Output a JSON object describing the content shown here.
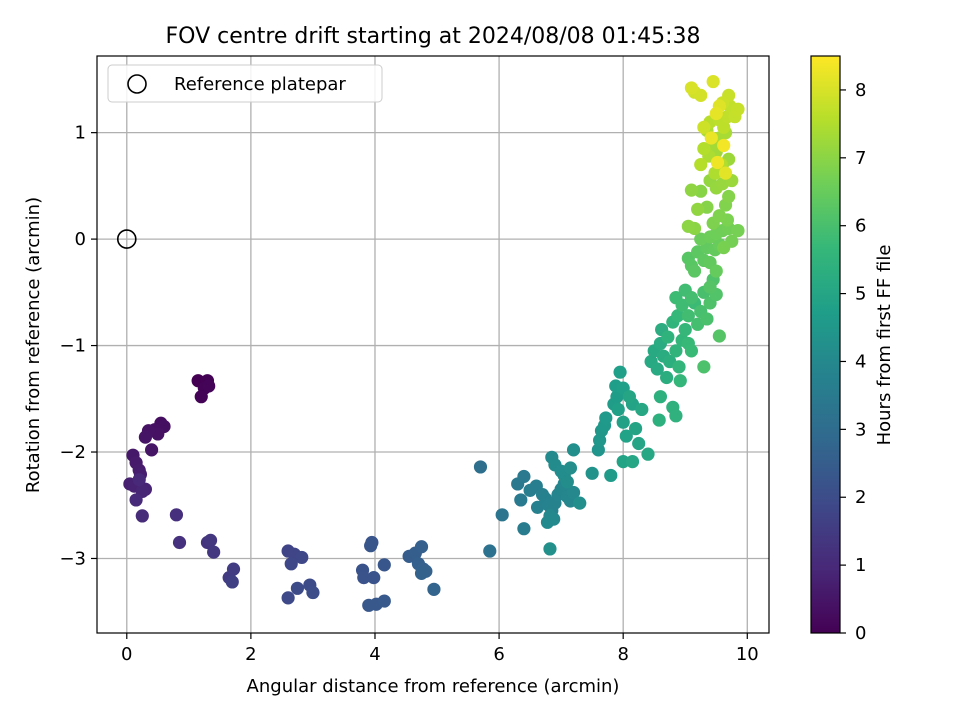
{
  "chart_data": {
    "type": "scatter",
    "title": "FOV centre drift starting at 2024/08/08 01:45:38",
    "xlabel": "Angular distance from reference (arcmin)",
    "ylabel": "Rotation from reference (arcmin)",
    "xlim": [
      -0.48,
      10.35
    ],
    "ylim": [
      -3.7,
      1.72
    ],
    "xticks": [
      0,
      2,
      4,
      6,
      8,
      10
    ],
    "yticks": [
      -3,
      -2,
      -1,
      0,
      1
    ],
    "xtick_labels": [
      "0",
      "2",
      "4",
      "6",
      "8",
      "10"
    ],
    "ytick_labels": [
      "−3",
      "−2",
      "−1",
      "0",
      "1"
    ],
    "grid": true,
    "legend": {
      "placement": "upper-left",
      "entries": [
        "Reference platepar"
      ]
    },
    "reference_point": {
      "label": "Reference platepar",
      "x": 0,
      "y": 0,
      "marker": "open-circle"
    },
    "colorbar": {
      "label": "Hours from first FF file",
      "range": [
        0,
        8.5
      ],
      "ticks": [
        0,
        1,
        2,
        3,
        4,
        5,
        6,
        7,
        8
      ],
      "tick_labels": [
        "0",
        "1",
        "2",
        "3",
        "4",
        "5",
        "6",
        "7",
        "8"
      ],
      "colormap": "viridis",
      "stops": [
        "#440154",
        "#482878",
        "#3e4989",
        "#31688e",
        "#26828e",
        "#1f9e89",
        "#35b779",
        "#6ece58",
        "#b5de2b",
        "#fde725"
      ]
    },
    "series": [
      {
        "points": [
          [
            1.15,
            -1.33,
            0.0
          ],
          [
            1.3,
            -1.33,
            0.02
          ],
          [
            1.25,
            -1.4,
            0.04
          ],
          [
            1.2,
            -1.48,
            0.06
          ],
          [
            1.32,
            -1.38,
            0.08
          ],
          [
            0.55,
            -1.73,
            0.3
          ],
          [
            0.6,
            -1.76,
            0.33
          ],
          [
            0.45,
            -1.79,
            0.36
          ],
          [
            0.5,
            -1.83,
            0.39
          ],
          [
            0.35,
            -1.8,
            0.42
          ],
          [
            0.3,
            -1.86,
            0.45
          ],
          [
            0.4,
            -1.98,
            0.48
          ],
          [
            0.1,
            -2.03,
            0.55
          ],
          [
            0.15,
            -2.1,
            0.6
          ],
          [
            0.2,
            -2.17,
            0.65
          ],
          [
            0.22,
            -2.21,
            0.7
          ],
          [
            0.05,
            -2.3,
            0.75
          ],
          [
            0.12,
            -2.32,
            0.8
          ],
          [
            0.3,
            -2.35,
            0.85
          ],
          [
            0.25,
            -2.37,
            0.9
          ],
          [
            0.2,
            -2.26,
            0.95
          ],
          [
            0.15,
            -2.45,
            1.0
          ],
          [
            0.25,
            -2.6,
            1.05
          ],
          [
            0.8,
            -2.59,
            1.15
          ],
          [
            0.85,
            -2.85,
            1.2
          ],
          [
            1.3,
            -2.85,
            1.3
          ],
          [
            1.35,
            -2.83,
            1.35
          ],
          [
            1.4,
            -2.94,
            1.4
          ],
          [
            1.65,
            -3.18,
            1.5
          ],
          [
            1.72,
            -3.1,
            1.55
          ],
          [
            1.7,
            -3.22,
            1.6
          ],
          [
            2.6,
            -2.93,
            1.75
          ],
          [
            2.7,
            -2.96,
            1.78
          ],
          [
            2.82,
            -2.99,
            1.82
          ],
          [
            2.65,
            -3.05,
            1.86
          ],
          [
            2.6,
            -3.37,
            1.9
          ],
          [
            2.75,
            -3.28,
            1.94
          ],
          [
            2.95,
            -3.25,
            1.98
          ],
          [
            3.0,
            -3.32,
            2.02
          ],
          [
            3.8,
            -3.11,
            2.15
          ],
          [
            3.82,
            -3.18,
            2.18
          ],
          [
            3.98,
            -3.18,
            2.21
          ],
          [
            3.95,
            -2.85,
            2.24
          ],
          [
            3.93,
            -2.88,
            2.27
          ],
          [
            4.15,
            -3.06,
            2.3
          ],
          [
            3.9,
            -3.44,
            2.33
          ],
          [
            4.02,
            -3.43,
            2.36
          ],
          [
            4.15,
            -3.4,
            2.39
          ],
          [
            4.55,
            -2.98,
            2.5
          ],
          [
            4.65,
            -2.95,
            2.53
          ],
          [
            4.75,
            -2.89,
            2.56
          ],
          [
            4.7,
            -3.05,
            2.59
          ],
          [
            4.78,
            -3.1,
            2.62
          ],
          [
            4.82,
            -3.12,
            2.65
          ],
          [
            4.75,
            -3.14,
            2.68
          ],
          [
            4.95,
            -3.29,
            2.72
          ],
          [
            5.7,
            -2.14,
            3.1
          ],
          [
            5.85,
            -2.93,
            3.2
          ],
          [
            6.05,
            -2.59,
            3.3
          ],
          [
            6.3,
            -2.3,
            3.4
          ],
          [
            6.4,
            -2.23,
            3.45
          ],
          [
            6.35,
            -2.45,
            3.5
          ],
          [
            6.4,
            -2.72,
            3.55
          ],
          [
            6.5,
            -2.36,
            3.6
          ],
          [
            6.6,
            -2.32,
            3.65
          ],
          [
            6.7,
            -2.4,
            3.7
          ],
          [
            6.62,
            -2.52,
            3.72
          ],
          [
            6.75,
            -2.44,
            3.75
          ],
          [
            6.8,
            -2.5,
            3.78
          ],
          [
            6.85,
            -2.55,
            3.8
          ],
          [
            6.9,
            -2.48,
            3.82
          ],
          [
            6.95,
            -2.4,
            3.85
          ],
          [
            7.0,
            -2.35,
            3.88
          ],
          [
            7.05,
            -2.3,
            3.9
          ],
          [
            7.1,
            -2.42,
            3.93
          ],
          [
            7.15,
            -2.46,
            3.95
          ],
          [
            7.2,
            -2.38,
            3.97
          ],
          [
            6.82,
            -2.6,
            3.98
          ],
          [
            6.88,
            -2.63,
            4.0
          ],
          [
            6.78,
            -2.66,
            4.02
          ],
          [
            6.85,
            -2.05,
            4.05
          ],
          [
            6.9,
            -2.12,
            4.08
          ],
          [
            7.0,
            -2.18,
            4.1
          ],
          [
            7.05,
            -2.22,
            4.12
          ],
          [
            7.1,
            -2.28,
            4.15
          ],
          [
            7.15,
            -2.15,
            4.18
          ],
          [
            7.2,
            -1.98,
            4.2
          ],
          [
            7.3,
            -2.48,
            4.22
          ],
          [
            6.82,
            -2.91,
            4.25
          ],
          [
            7.5,
            -2.2,
            4.35
          ],
          [
            7.6,
            -1.98,
            4.4
          ],
          [
            7.62,
            -1.89,
            4.45
          ],
          [
            7.65,
            -1.8,
            4.5
          ],
          [
            7.7,
            -1.75,
            4.55
          ],
          [
            7.72,
            -1.68,
            4.6
          ],
          [
            7.8,
            -2.22,
            4.62
          ],
          [
            7.85,
            -1.55,
            4.65
          ],
          [
            7.9,
            -1.48,
            4.7
          ],
          [
            7.88,
            -1.38,
            4.72
          ],
          [
            7.95,
            -1.25,
            4.75
          ],
          [
            8.0,
            -1.4,
            4.78
          ],
          [
            7.92,
            -1.6,
            4.8
          ],
          [
            8.0,
            -1.72,
            4.83
          ],
          [
            8.05,
            -1.85,
            4.86
          ],
          [
            8.0,
            -2.09,
            4.9
          ],
          [
            8.15,
            -1.55,
            4.92
          ],
          [
            8.2,
            -1.78,
            4.95
          ],
          [
            8.25,
            -1.92,
            4.98
          ],
          [
            8.1,
            -1.48,
            5.0
          ],
          [
            8.15,
            -2.09,
            5.02
          ],
          [
            8.4,
            -2.02,
            5.05
          ],
          [
            8.3,
            -1.6,
            5.08
          ],
          [
            8.45,
            -1.15,
            5.1
          ],
          [
            8.5,
            -1.05,
            5.13
          ],
          [
            8.55,
            -1.22,
            5.16
          ],
          [
            8.6,
            -0.98,
            5.2
          ],
          [
            8.65,
            -1.1,
            5.23
          ],
          [
            8.62,
            -0.85,
            5.26
          ],
          [
            8.7,
            -1.3,
            5.29
          ],
          [
            8.75,
            -1.15,
            5.32
          ],
          [
            8.6,
            -1.48,
            5.35
          ],
          [
            8.58,
            -1.7,
            5.38
          ],
          [
            8.8,
            -1.58,
            5.41
          ],
          [
            8.85,
            -1.66,
            5.44
          ],
          [
            8.72,
            -0.92,
            5.47
          ],
          [
            8.8,
            -0.78,
            5.5
          ],
          [
            8.85,
            -1.05,
            5.53
          ],
          [
            8.9,
            -1.2,
            5.56
          ],
          [
            8.95,
            -0.95,
            5.59
          ],
          [
            8.92,
            -1.33,
            5.62
          ],
          [
            8.88,
            -0.72,
            5.65
          ],
          [
            9.0,
            -0.85,
            5.68
          ],
          [
            9.05,
            -0.98,
            5.71
          ],
          [
            9.1,
            -1.05,
            5.74
          ],
          [
            9.15,
            -0.6,
            5.77
          ],
          [
            8.85,
            -0.55,
            5.8
          ],
          [
            8.95,
            -0.62,
            5.83
          ],
          [
            9.0,
            -0.48,
            5.86
          ],
          [
            9.05,
            -0.72,
            5.89
          ],
          [
            9.1,
            -0.55,
            5.92
          ],
          [
            9.2,
            -0.8,
            5.95
          ],
          [
            9.25,
            -0.68,
            5.98
          ],
          [
            9.3,
            -0.5,
            6.0
          ],
          [
            9.35,
            -0.75,
            6.03
          ],
          [
            9.3,
            -1.2,
            6.06
          ],
          [
            9.4,
            -0.6,
            6.09
          ],
          [
            9.45,
            -0.38,
            6.12
          ],
          [
            9.5,
            -0.52,
            6.15
          ],
          [
            9.55,
            -0.91,
            6.18
          ],
          [
            9.4,
            -0.45,
            6.21
          ],
          [
            9.05,
            -0.18,
            6.24
          ],
          [
            9.1,
            -0.25,
            6.27
          ],
          [
            9.15,
            -0.3,
            6.3
          ],
          [
            9.2,
            -0.12,
            6.33
          ],
          [
            9.3,
            -0.2,
            6.36
          ],
          [
            9.35,
            -0.08,
            6.39
          ],
          [
            9.4,
            -0.22,
            6.42
          ],
          [
            9.48,
            -0.1,
            6.45
          ],
          [
            9.5,
            -0.3,
            6.48
          ],
          [
            9.55,
            -0.05,
            6.51
          ],
          [
            9.25,
            0.0,
            6.54
          ],
          [
            9.4,
            0.02,
            6.57
          ],
          [
            9.5,
            0.05,
            6.6
          ],
          [
            9.6,
            0.08,
            6.63
          ],
          [
            9.7,
            0.1,
            6.66
          ],
          [
            9.75,
            -0.02,
            6.69
          ],
          [
            9.85,
            0.08,
            6.72
          ],
          [
            9.62,
            -0.08,
            6.75
          ],
          [
            9.68,
            0.18,
            6.78
          ],
          [
            9.45,
            0.15,
            6.81
          ],
          [
            9.55,
            0.22,
            6.84
          ],
          [
            9.65,
            0.32,
            6.87
          ],
          [
            9.7,
            0.4,
            6.9
          ],
          [
            9.35,
            0.3,
            6.93
          ],
          [
            9.25,
            0.45,
            6.96
          ],
          [
            9.15,
            0.1,
            6.99
          ],
          [
            9.05,
            0.12,
            7.02
          ],
          [
            9.1,
            0.46,
            7.05
          ],
          [
            9.2,
            0.28,
            7.08
          ],
          [
            9.4,
            0.55,
            7.11
          ],
          [
            9.5,
            0.48,
            7.14
          ],
          [
            9.6,
            0.52,
            7.17
          ],
          [
            9.75,
            0.55,
            7.2
          ],
          [
            9.7,
            0.75,
            7.23
          ],
          [
            9.6,
            0.7,
            7.26
          ],
          [
            9.5,
            0.82,
            7.29
          ],
          [
            9.45,
            0.9,
            7.32
          ],
          [
            9.55,
            0.95,
            7.35
          ],
          [
            9.65,
            1.0,
            7.38
          ],
          [
            9.35,
            1.02,
            7.41
          ],
          [
            9.38,
            0.78,
            7.44
          ],
          [
            9.48,
            0.62,
            7.47
          ],
          [
            9.58,
            0.7,
            7.5
          ],
          [
            9.3,
            0.85,
            7.53
          ],
          [
            9.25,
            0.7,
            7.56
          ],
          [
            9.4,
            1.1,
            7.6
          ],
          [
            9.55,
            1.12,
            7.63
          ],
          [
            9.62,
            1.05,
            7.66
          ],
          [
            9.68,
            1.15,
            7.69
          ],
          [
            9.72,
            1.25,
            7.72
          ],
          [
            9.8,
            1.15,
            7.75
          ],
          [
            9.85,
            1.22,
            7.78
          ],
          [
            9.7,
            1.35,
            7.81
          ],
          [
            9.6,
            1.28,
            7.84
          ],
          [
            9.3,
            1.05,
            7.87
          ],
          [
            9.15,
            1.38,
            7.9
          ],
          [
            9.25,
            1.35,
            7.95
          ],
          [
            9.1,
            1.42,
            8.0
          ],
          [
            9.45,
            1.48,
            8.05
          ],
          [
            9.55,
            1.25,
            8.1
          ],
          [
            9.65,
            0.62,
            8.15
          ],
          [
            9.5,
            1.18,
            8.2
          ],
          [
            9.42,
            0.95,
            8.25
          ],
          [
            9.52,
            0.72,
            8.3
          ],
          [
            9.62,
            0.88,
            8.35
          ]
        ]
      }
    ]
  }
}
